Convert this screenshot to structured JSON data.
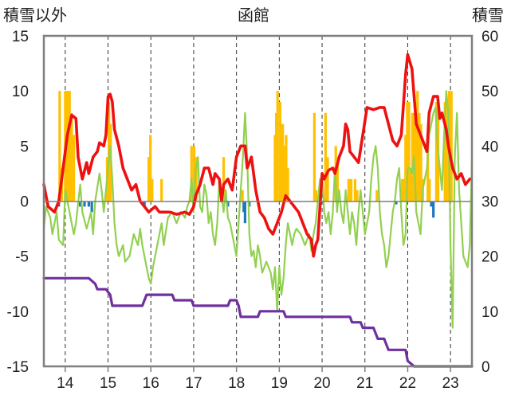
{
  "chart_data": {
    "type": "bar+line",
    "title": "函館",
    "left_axis_label": "積雪以外",
    "right_axis_label": "積雪",
    "left_ticks": [
      "15",
      "10",
      "5",
      "0",
      "-5",
      "-10",
      "-15"
    ],
    "right_ticks": [
      "60",
      "50",
      "40",
      "30",
      "20",
      "10",
      "0"
    ],
    "x_ticks": [
      "14",
      "15",
      "16",
      "17",
      "18",
      "19",
      "20",
      "21",
      "22",
      "23"
    ],
    "ylim_left": [
      -15,
      15
    ],
    "ylim_right": [
      0,
      60
    ],
    "xlim": [
      13.5,
      23.5
    ],
    "grid": "vertical dashed at year ticks",
    "colors": {
      "red_line": "#ee1111",
      "green_line": "#92d050",
      "purple_line": "#7030a0",
      "orange_bars": "#ffc000",
      "blue_bars": "#1f77c0"
    },
    "red_series": [
      [
        13.5,
        1.5
      ],
      [
        13.6,
        -0.5
      ],
      [
        13.75,
        -1
      ],
      [
        13.85,
        0
      ],
      [
        13.95,
        3
      ],
      [
        14.05,
        6
      ],
      [
        14.15,
        7.8
      ],
      [
        14.25,
        7.5
      ],
      [
        14.3,
        4
      ],
      [
        14.4,
        2
      ],
      [
        14.5,
        3.5
      ],
      [
        14.55,
        2.5
      ],
      [
        14.65,
        4
      ],
      [
        14.75,
        4.5
      ],
      [
        14.8,
        5.3
      ],
      [
        14.9,
        5
      ],
      [
        14.95,
        6
      ],
      [
        15.0,
        9.5
      ],
      [
        15.05,
        9.7
      ],
      [
        15.1,
        9
      ],
      [
        15.15,
        6.5
      ],
      [
        15.25,
        5
      ],
      [
        15.35,
        3
      ],
      [
        15.45,
        2
      ],
      [
        15.55,
        1
      ],
      [
        15.65,
        1.5
      ],
      [
        15.75,
        0
      ],
      [
        15.85,
        -0.5
      ],
      [
        15.95,
        -1
      ],
      [
        16.1,
        -0.5
      ],
      [
        16.2,
        -1
      ],
      [
        16.3,
        -1
      ],
      [
        16.45,
        -1
      ],
      [
        16.6,
        -1.2
      ],
      [
        16.8,
        -1
      ],
      [
        16.9,
        -1.2
      ],
      [
        17.0,
        -0.5
      ],
      [
        17.05,
        0.5
      ],
      [
        17.15,
        1.5
      ],
      [
        17.25,
        3
      ],
      [
        17.35,
        3
      ],
      [
        17.45,
        1.5
      ],
      [
        17.5,
        2.5
      ],
      [
        17.6,
        2
      ],
      [
        17.65,
        0
      ],
      [
        17.7,
        1.5
      ],
      [
        17.8,
        2
      ],
      [
        17.9,
        1
      ],
      [
        18.0,
        4
      ],
      [
        18.1,
        5
      ],
      [
        18.2,
        5
      ],
      [
        18.25,
        3
      ],
      [
        18.35,
        4
      ],
      [
        18.45,
        1
      ],
      [
        18.55,
        -1
      ],
      [
        18.65,
        -1.5
      ],
      [
        18.75,
        -2.5
      ],
      [
        18.85,
        -3
      ],
      [
        18.95,
        -2
      ],
      [
        19.05,
        -1
      ],
      [
        19.15,
        0.5
      ],
      [
        19.25,
        0
      ],
      [
        19.35,
        -0.5
      ],
      [
        19.45,
        -1
      ],
      [
        19.55,
        -2
      ],
      [
        19.65,
        -3
      ],
      [
        19.75,
        -3.5
      ],
      [
        19.8,
        -5
      ],
      [
        19.85,
        -4
      ],
      [
        19.9,
        -3.5
      ],
      [
        19.95,
        -0.5
      ],
      [
        20.0,
        2.5
      ],
      [
        20.05,
        2
      ],
      [
        20.15,
        2.8
      ],
      [
        20.25,
        3
      ],
      [
        20.3,
        2.5
      ],
      [
        20.4,
        4
      ],
      [
        20.5,
        5
      ],
      [
        20.55,
        7
      ],
      [
        20.6,
        6.5
      ],
      [
        20.65,
        4.5
      ],
      [
        20.75,
        4
      ],
      [
        20.85,
        3.5
      ],
      [
        20.95,
        6
      ],
      [
        21.05,
        8.5
      ],
      [
        21.2,
        8.3
      ],
      [
        21.35,
        8.5
      ],
      [
        21.45,
        8.5
      ],
      [
        21.55,
        7
      ],
      [
        21.65,
        5.5
      ],
      [
        21.75,
        5
      ],
      [
        21.85,
        6
      ],
      [
        21.95,
        11.5
      ],
      [
        22.0,
        13.3
      ],
      [
        22.1,
        12
      ],
      [
        22.2,
        7
      ],
      [
        22.3,
        6
      ],
      [
        22.4,
        5
      ],
      [
        22.45,
        4.5
      ],
      [
        22.5,
        8
      ],
      [
        22.6,
        9.5
      ],
      [
        22.7,
        9.5
      ],
      [
        22.75,
        7.5
      ],
      [
        22.8,
        8
      ],
      [
        22.9,
        6.5
      ],
      [
        22.95,
        5
      ],
      [
        23.05,
        3
      ],
      [
        23.15,
        2
      ],
      [
        23.25,
        2.5
      ],
      [
        23.35,
        1.5
      ],
      [
        23.45,
        2
      ]
    ],
    "green_series": [
      [
        13.5,
        -2.5
      ],
      [
        13.55,
        -0.5
      ],
      [
        13.65,
        -1.5
      ],
      [
        13.7,
        -3
      ],
      [
        13.75,
        -2
      ],
      [
        13.8,
        -1
      ],
      [
        13.85,
        -3.5
      ],
      [
        13.95,
        -4
      ],
      [
        14.0,
        1
      ],
      [
        14.1,
        -1
      ],
      [
        14.2,
        -3
      ],
      [
        14.25,
        -2
      ],
      [
        14.35,
        1.5
      ],
      [
        14.4,
        -1
      ],
      [
        14.5,
        -2.5
      ],
      [
        14.6,
        -1
      ],
      [
        14.65,
        -3
      ],
      [
        14.7,
        0
      ],
      [
        14.8,
        2.5
      ],
      [
        14.85,
        1
      ],
      [
        14.9,
        -1
      ],
      [
        14.95,
        1
      ],
      [
        15.0,
        3
      ],
      [
        15.05,
        5
      ],
      [
        15.1,
        2
      ],
      [
        15.15,
        -2
      ],
      [
        15.2,
        -4
      ],
      [
        15.25,
        -5
      ],
      [
        15.35,
        -4
      ],
      [
        15.4,
        -5.5
      ],
      [
        15.5,
        -5
      ],
      [
        15.6,
        -3
      ],
      [
        15.7,
        -4
      ],
      [
        15.75,
        -2.5
      ],
      [
        15.8,
        -4
      ],
      [
        15.85,
        -5
      ],
      [
        15.9,
        -6
      ],
      [
        15.95,
        -7
      ],
      [
        16.0,
        -7.5
      ],
      [
        16.05,
        -6
      ],
      [
        16.1,
        -5
      ],
      [
        16.2,
        -3
      ],
      [
        16.25,
        -2
      ],
      [
        16.3,
        -4
      ],
      [
        16.4,
        -1.5
      ],
      [
        16.5,
        -1
      ],
      [
        16.6,
        -2
      ],
      [
        16.7,
        -1
      ],
      [
        16.8,
        -1.5
      ],
      [
        16.85,
        -0.5
      ],
      [
        16.9,
        0
      ],
      [
        16.95,
        2
      ],
      [
        17.0,
        -1
      ],
      [
        17.05,
        3
      ],
      [
        17.1,
        4
      ],
      [
        17.15,
        -0.5
      ],
      [
        17.2,
        -1
      ],
      [
        17.25,
        1.5
      ],
      [
        17.3,
        0.5
      ],
      [
        17.35,
        -2
      ],
      [
        17.4,
        -1
      ],
      [
        17.45,
        -3
      ],
      [
        17.5,
        -4
      ],
      [
        17.55,
        -2
      ],
      [
        17.6,
        2
      ],
      [
        17.7,
        -1
      ],
      [
        17.75,
        1
      ],
      [
        17.8,
        -1.5
      ],
      [
        17.85,
        -2
      ],
      [
        17.9,
        -3
      ],
      [
        17.95,
        -4
      ],
      [
        18.0,
        -5
      ],
      [
        18.05,
        -2
      ],
      [
        18.1,
        1
      ],
      [
        18.15,
        4
      ],
      [
        18.2,
        8
      ],
      [
        18.25,
        4
      ],
      [
        18.3,
        -3
      ],
      [
        18.35,
        -5
      ],
      [
        18.4,
        -4.5
      ],
      [
        18.45,
        -6
      ],
      [
        18.5,
        -4
      ],
      [
        18.55,
        -5
      ],
      [
        18.6,
        -6.5
      ],
      [
        18.65,
        -6
      ],
      [
        18.7,
        -5.5
      ],
      [
        18.75,
        -6
      ],
      [
        18.8,
        -6.5
      ],
      [
        18.85,
        -8
      ],
      [
        18.9,
        -6
      ],
      [
        18.95,
        -10
      ],
      [
        19.0,
        -6
      ],
      [
        19.05,
        -8.5
      ],
      [
        19.1,
        -7
      ],
      [
        19.15,
        -4
      ],
      [
        19.2,
        -2
      ],
      [
        19.25,
        -3
      ],
      [
        19.3,
        -4
      ],
      [
        19.35,
        -3
      ],
      [
        19.4,
        -2.5
      ],
      [
        19.5,
        -3
      ],
      [
        19.6,
        -4
      ],
      [
        19.7,
        -3
      ],
      [
        19.75,
        -4.5
      ],
      [
        19.8,
        -3
      ],
      [
        19.85,
        -2
      ],
      [
        19.9,
        0
      ],
      [
        19.95,
        2
      ],
      [
        20.0,
        2
      ],
      [
        20.05,
        -1
      ],
      [
        20.1,
        -2
      ],
      [
        20.15,
        -1
      ],
      [
        20.2,
        -3
      ],
      [
        20.25,
        -1
      ],
      [
        20.3,
        3
      ],
      [
        20.35,
        -1
      ],
      [
        20.4,
        1
      ],
      [
        20.45,
        -1
      ],
      [
        20.5,
        -2
      ],
      [
        20.55,
        1
      ],
      [
        20.6,
        -1
      ],
      [
        20.65,
        -3
      ],
      [
        20.7,
        -1
      ],
      [
        20.75,
        -2
      ],
      [
        20.8,
        -4
      ],
      [
        20.85,
        -1
      ],
      [
        20.9,
        1
      ],
      [
        20.95,
        -1
      ],
      [
        21.0,
        -3
      ],
      [
        21.05,
        -2
      ],
      [
        21.1,
        -1
      ],
      [
        21.15,
        2
      ],
      [
        21.2,
        4
      ],
      [
        21.25,
        5
      ],
      [
        21.3,
        3
      ],
      [
        21.35,
        -1
      ],
      [
        21.4,
        -3
      ],
      [
        21.45,
        -4
      ],
      [
        21.5,
        -6
      ],
      [
        21.55,
        -5
      ],
      [
        21.6,
        -3
      ],
      [
        21.65,
        -1
      ],
      [
        21.7,
        0
      ],
      [
        21.75,
        2
      ],
      [
        21.8,
        3
      ],
      [
        21.85,
        -1
      ],
      [
        21.9,
        -4
      ],
      [
        21.95,
        -3
      ],
      [
        22.0,
        3
      ],
      [
        22.05,
        3
      ],
      [
        22.1,
        2.5
      ],
      [
        22.15,
        4
      ],
      [
        22.2,
        -1
      ],
      [
        22.25,
        -2
      ],
      [
        22.3,
        -3
      ],
      [
        22.35,
        1
      ],
      [
        22.4,
        2
      ],
      [
        22.45,
        3
      ],
      [
        22.5,
        6
      ],
      [
        22.55,
        7
      ],
      [
        22.6,
        8
      ],
      [
        22.65,
        8.5
      ],
      [
        22.7,
        5
      ],
      [
        22.75,
        3
      ],
      [
        22.8,
        1
      ],
      [
        22.85,
        6
      ],
      [
        22.9,
        10
      ],
      [
        22.95,
        8
      ],
      [
        23.0,
        -4
      ],
      [
        23.05,
        -11.5
      ],
      [
        23.1,
        4
      ],
      [
        23.15,
        8
      ],
      [
        23.2,
        1
      ],
      [
        23.25,
        -2
      ],
      [
        23.3,
        -5
      ],
      [
        23.35,
        -5.5
      ],
      [
        23.4,
        -6
      ],
      [
        23.45,
        -4
      ],
      [
        23.5,
        3.5
      ]
    ],
    "purple_series": [
      [
        13.5,
        -7
      ],
      [
        14.55,
        -7
      ],
      [
        14.7,
        -7.5
      ],
      [
        14.75,
        -8
      ],
      [
        14.95,
        -8
      ],
      [
        15.05,
        -8.5
      ],
      [
        15.1,
        -9.5
      ],
      [
        15.8,
        -9.5
      ],
      [
        15.9,
        -8.5
      ],
      [
        16.05,
        -8.5
      ],
      [
        16.5,
        -8.5
      ],
      [
        16.55,
        -9
      ],
      [
        16.95,
        -9
      ],
      [
        17.0,
        -9.5
      ],
      [
        17.8,
        -9.5
      ],
      [
        17.85,
        -9
      ],
      [
        18.0,
        -9
      ],
      [
        18.05,
        -9.5
      ],
      [
        18.1,
        -10.5
      ],
      [
        18.5,
        -10.5
      ],
      [
        18.55,
        -10
      ],
      [
        19.1,
        -10
      ],
      [
        19.15,
        -10.5
      ],
      [
        20.35,
        -10.5
      ],
      [
        20.65,
        -10.5
      ],
      [
        20.7,
        -11
      ],
      [
        20.9,
        -11
      ],
      [
        20.95,
        -11.5
      ],
      [
        21.2,
        -11.5
      ],
      [
        21.3,
        -12.5
      ],
      [
        21.45,
        -12.5
      ],
      [
        21.55,
        -13.5
      ],
      [
        21.95,
        -13.5
      ],
      [
        22.0,
        -14.5
      ],
      [
        22.15,
        -15
      ],
      [
        23.5,
        -15
      ]
    ],
    "orange_bars": [
      [
        13.87,
        10
      ],
      [
        13.92,
        3
      ],
      [
        14.0,
        10
      ],
      [
        14.05,
        10
      ],
      [
        14.1,
        10
      ],
      [
        14.15,
        8
      ],
      [
        14.2,
        6
      ],
      [
        14.98,
        4
      ],
      [
        15.02,
        9
      ],
      [
        15.06,
        7
      ],
      [
        15.95,
        4
      ],
      [
        15.99,
        6
      ],
      [
        16.03,
        2
      ],
      [
        16.25,
        2
      ],
      [
        16.95,
        5
      ],
      [
        17.01,
        5
      ],
      [
        17.06,
        4
      ],
      [
        17.7,
        4
      ],
      [
        18.14,
        1
      ],
      [
        18.9,
        6
      ],
      [
        18.93,
        8
      ],
      [
        18.96,
        10
      ],
      [
        19.02,
        9
      ],
      [
        19.04,
        6
      ],
      [
        19.08,
        7
      ],
      [
        19.12,
        5
      ],
      [
        19.16,
        6
      ],
      [
        19.2,
        3
      ],
      [
        19.82,
        8
      ],
      [
        19.86,
        1
      ],
      [
        20.08,
        8
      ],
      [
        20.13,
        4
      ],
      [
        20.32,
        5
      ],
      [
        20.36,
        4
      ],
      [
        20.62,
        2
      ],
      [
        20.68,
        2
      ],
      [
        20.77,
        2
      ],
      [
        20.82,
        1
      ],
      [
        21.28,
        1
      ],
      [
        21.87,
        2
      ],
      [
        21.91,
        2
      ],
      [
        21.95,
        6
      ],
      [
        21.99,
        9
      ],
      [
        22.03,
        9
      ],
      [
        22.07,
        3
      ],
      [
        22.11,
        8
      ],
      [
        22.15,
        8
      ],
      [
        22.19,
        9
      ],
      [
        22.23,
        10
      ],
      [
        22.27,
        8
      ],
      [
        22.31,
        7
      ],
      [
        22.35,
        2
      ],
      [
        22.47,
        5
      ],
      [
        22.51,
        2
      ],
      [
        22.67,
        9
      ],
      [
        22.71,
        9
      ],
      [
        22.87,
        9
      ],
      [
        22.91,
        9
      ],
      [
        22.97,
        10
      ],
      [
        23.02,
        10
      ]
    ],
    "blue_bars": [
      [
        13.85,
        -0.5
      ],
      [
        14.35,
        -0.5
      ],
      [
        14.45,
        -0.5
      ],
      [
        14.55,
        -0.5
      ],
      [
        14.62,
        -1
      ],
      [
        15.85,
        -0.5
      ],
      [
        17.8,
        -0.5
      ],
      [
        18.17,
        -1
      ],
      [
        18.2,
        -2
      ],
      [
        18.3,
        -0.5
      ],
      [
        21.73,
        -0.3
      ],
      [
        22.55,
        -0.5
      ],
      [
        22.6,
        -1.5
      ]
    ]
  }
}
